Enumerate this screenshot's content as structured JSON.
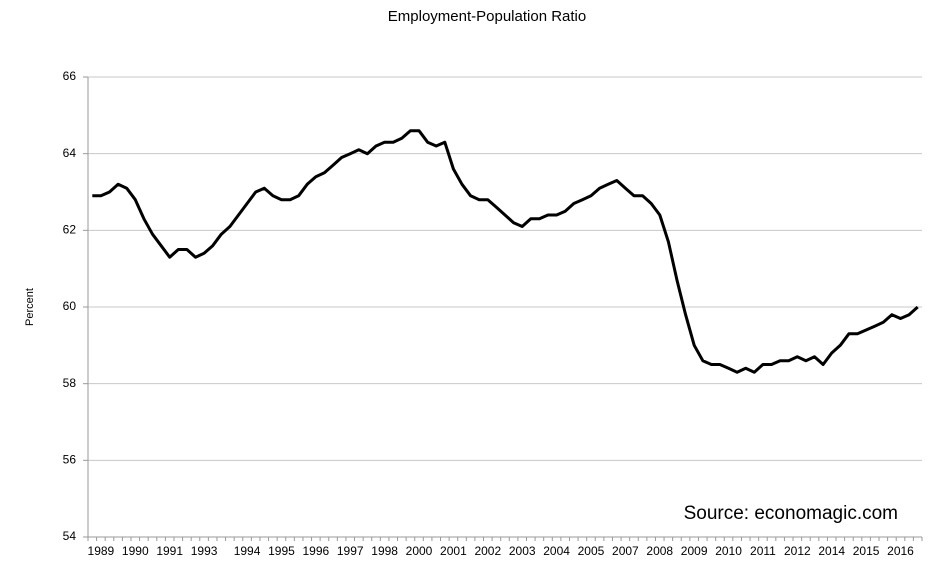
{
  "chart_data": {
    "type": "line",
    "title": "Employment-Population Ratio",
    "y_label": "Percent",
    "annotation": "Source: economagic.com",
    "categories": [
      null,
      "1989",
      null,
      null,
      null,
      "1990",
      null,
      null,
      null,
      "1991",
      null,
      null,
      null,
      "1993",
      null,
      null,
      null,
      null,
      "1994",
      null,
      null,
      null,
      "1995",
      null,
      null,
      null,
      "1996",
      null,
      null,
      null,
      "1997",
      null,
      null,
      null,
      "1998",
      null,
      null,
      null,
      "2000",
      null,
      null,
      null,
      "2001",
      null,
      null,
      null,
      "2002",
      null,
      null,
      null,
      "2003",
      null,
      null,
      null,
      "2004",
      null,
      null,
      null,
      "2005",
      null,
      null,
      null,
      "2007",
      null,
      null,
      null,
      "2008",
      null,
      null,
      null,
      "2009",
      null,
      null,
      null,
      "2010",
      null,
      null,
      null,
      "2011",
      null,
      null,
      null,
      "2012",
      null,
      null,
      null,
      "2014",
      null,
      null,
      null,
      "2015",
      null,
      null,
      null,
      "2016",
      null,
      null
    ],
    "series": [
      {
        "name": "Employment-Population Ratio",
        "color": "#000000",
        "values": [
          62.9,
          62.9,
          63.0,
          63.2,
          63.1,
          62.8,
          62.3,
          61.9,
          61.6,
          61.3,
          61.5,
          61.5,
          61.3,
          61.4,
          61.6,
          61.9,
          62.1,
          62.4,
          62.7,
          63.0,
          63.1,
          62.9,
          62.8,
          62.8,
          62.9,
          63.2,
          63.4,
          63.5,
          63.7,
          63.9,
          64.0,
          64.1,
          64.0,
          64.2,
          64.3,
          64.3,
          64.4,
          64.6,
          64.6,
          64.3,
          64.2,
          64.3,
          63.6,
          63.2,
          62.9,
          62.8,
          62.8,
          62.6,
          62.4,
          62.2,
          62.1,
          62.3,
          62.3,
          62.4,
          62.4,
          62.5,
          62.7,
          62.8,
          62.9,
          63.1,
          63.2,
          63.3,
          63.1,
          62.9,
          62.9,
          62.7,
          62.4,
          61.7,
          60.7,
          59.8,
          59.0,
          58.6,
          58.5,
          58.5,
          58.4,
          58.3,
          58.4,
          58.3,
          58.5,
          58.5,
          58.6,
          58.6,
          58.7,
          58.6,
          58.7,
          58.5,
          58.8,
          59.0,
          59.3,
          59.3,
          59.4,
          59.5,
          59.6,
          59.8,
          59.7,
          59.8,
          60.0
        ]
      }
    ],
    "ylim": [
      54,
      66
    ],
    "yticks": [
      54,
      56,
      58,
      60,
      62,
      64,
      66
    ],
    "grid": true
  }
}
